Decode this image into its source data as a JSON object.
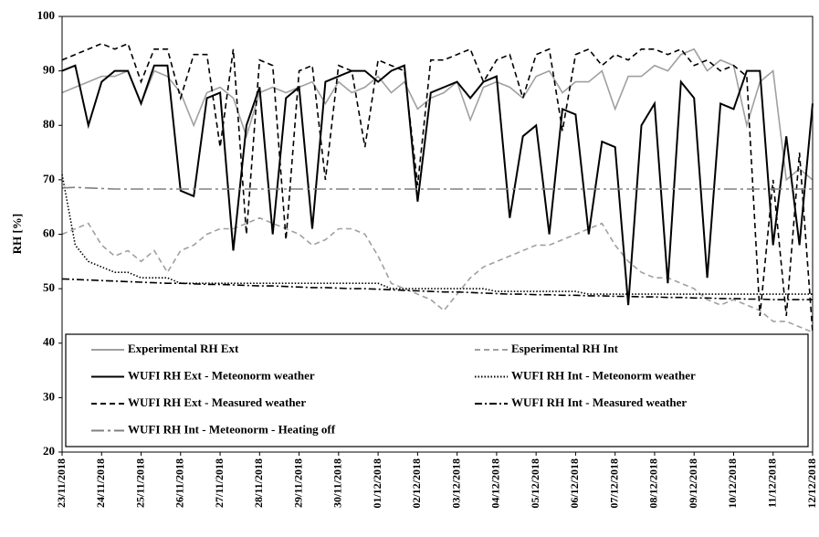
{
  "chart_data": {
    "type": "line",
    "y_label": "RH [%]",
    "ylim": [
      20,
      100
    ],
    "yticks": [
      20,
      30,
      40,
      50,
      60,
      70,
      80,
      90,
      100
    ],
    "grid": false,
    "categories": [
      "23/11/2018",
      null,
      null,
      "24/11/2018",
      null,
      null,
      "25/11/2018",
      null,
      null,
      "26/11/2018",
      null,
      null,
      "27/11/2018",
      null,
      null,
      "28/11/2018",
      null,
      null,
      "29/11/2018",
      null,
      null,
      "30/11/2018",
      null,
      null,
      "01/12/2018",
      null,
      null,
      "02/12/2018",
      null,
      null,
      "03/12/2018",
      null,
      null,
      "04/12/2018",
      null,
      null,
      "05/12/2018",
      null,
      null,
      "06/12/2018",
      null,
      null,
      "07/12/2018",
      null,
      null,
      "08/12/2018",
      null,
      null,
      "09/12/2018",
      null,
      null,
      "10/12/2018",
      null,
      null,
      "11/12/2018",
      null,
      null,
      "12/12/2018"
    ],
    "series": [
      {
        "name": "Experimental RH Ext",
        "color": "#a0a0a0",
        "dash": "solid",
        "values": [
          86,
          87,
          88,
          89,
          89,
          90,
          84,
          90,
          89,
          86,
          80,
          86,
          87,
          85,
          78,
          86,
          87,
          86,
          87,
          88,
          84,
          88,
          86,
          87,
          89,
          86,
          88,
          83,
          85,
          86,
          88,
          81,
          87,
          88,
          87,
          85,
          89,
          90,
          86,
          88,
          88,
          90,
          83,
          89,
          89,
          91,
          90,
          93,
          94,
          90,
          92,
          91,
          80,
          88,
          90,
          70,
          72,
          70
        ]
      },
      {
        "name": "Esperimental RH Int",
        "color": "#a0a0a0",
        "dash": "dashed",
        "values": [
          60,
          61,
          62,
          58,
          56,
          57,
          55,
          57,
          53,
          57,
          58,
          60,
          61,
          61,
          62,
          63,
          62,
          61,
          60,
          58,
          59,
          61,
          61,
          60,
          56,
          51,
          50,
          49,
          48,
          46,
          49,
          52,
          54,
          55,
          56,
          57,
          58,
          58,
          59,
          60,
          61,
          62,
          58,
          55,
          53,
          52,
          52,
          51,
          50,
          48,
          47,
          48,
          47,
          46,
          44,
          44,
          43,
          42
        ]
      },
      {
        "name": "WUFI RH Ext - Meteonorm weather",
        "color": "#000000",
        "dash": "solid",
        "values": [
          90,
          91,
          80,
          88,
          90,
          90,
          84,
          91,
          91,
          68,
          67,
          85,
          86,
          57,
          80,
          87,
          60,
          85,
          87,
          61,
          88,
          89,
          90,
          90,
          88,
          90,
          91,
          66,
          86,
          87,
          88,
          85,
          88,
          89,
          63,
          78,
          80,
          60,
          83,
          82,
          60,
          77,
          76,
          47,
          80,
          84,
          51,
          88,
          85,
          52,
          84,
          83,
          90,
          90,
          58,
          78,
          58,
          84
        ]
      },
      {
        "name": "WUFI RH Int - Meteonorm weather",
        "color": "#000000",
        "dash": "dotted",
        "values": [
          71,
          58,
          55,
          54,
          53,
          53,
          52,
          52,
          52,
          51,
          51,
          51,
          51,
          51,
          51,
          51,
          51,
          51,
          51,
          51,
          51,
          51,
          51,
          51,
          51,
          50,
          50,
          50,
          50,
          50,
          50,
          50,
          50,
          49.5,
          49.5,
          49.5,
          49.5,
          49.5,
          49.5,
          49.5,
          49,
          49,
          49,
          49,
          49,
          49,
          49,
          49,
          49,
          49,
          49,
          49,
          49,
          49,
          49,
          49,
          49,
          49
        ]
      },
      {
        "name": "WUFI RH Ext - Measured weather",
        "color": "#000000",
        "dash": "dashed",
        "values": [
          92,
          93,
          94,
          95,
          94,
          95,
          88,
          94,
          94,
          85,
          93,
          93,
          76,
          94,
          60,
          92,
          91,
          59,
          90,
          91,
          70,
          91,
          90,
          76,
          92,
          91,
          90,
          69,
          92,
          92,
          93,
          94,
          88,
          92,
          93,
          85,
          93,
          94,
          79,
          93,
          94,
          91,
          93,
          92,
          94,
          94,
          93,
          94,
          91,
          92,
          90,
          91,
          89,
          45,
          70,
          45,
          75,
          42
        ]
      },
      {
        "name": "WUFI RH Int - Measured weather",
        "color": "#000000",
        "dash": "dashdot",
        "values": [
          51.8,
          51.7,
          51.6,
          51.5,
          51.4,
          51.3,
          51.2,
          51.1,
          51,
          51,
          50.9,
          50.8,
          50.8,
          50.7,
          50.6,
          50.5,
          50.5,
          50.4,
          50.3,
          50.2,
          50.2,
          50.1,
          50,
          50,
          49.9,
          49.8,
          49.7,
          49.6,
          49.5,
          49.4,
          49.4,
          49.3,
          49.2,
          49.1,
          49,
          49,
          48.9,
          48.9,
          48.8,
          48.8,
          48.7,
          48.7,
          48.6,
          48.6,
          48.5,
          48.5,
          48.4,
          48.4,
          48.3,
          48.3,
          48.2,
          48.2,
          48.1,
          48.1,
          48,
          48,
          48,
          48
        ]
      },
      {
        "name": "WUFI RH Int - Meteonorm - Heating off",
        "color": "#808080",
        "dash": "longdashdot",
        "values": [
          68.5,
          68.6,
          68.5,
          68.4,
          68.3,
          68.3,
          68.3,
          68.3,
          68.3,
          68.3,
          68.3,
          68.3,
          68.3,
          68.3,
          68.3,
          68.3,
          68.3,
          68.3,
          68.3,
          68.3,
          68.3,
          68.3,
          68.3,
          68.3,
          68.3,
          68.3,
          68.3,
          68.3,
          68.3,
          68.3,
          68.3,
          68.3,
          68.3,
          68.3,
          68.3,
          68.3,
          68.3,
          68.3,
          68.3,
          68.3,
          68.3,
          68.3,
          68.3,
          68.3,
          68.3,
          68.3,
          68.3,
          68.3,
          68.3,
          68.3,
          68.3,
          68.3,
          68.3,
          68.3,
          68.3,
          68.3,
          68.3,
          68.3
        ]
      }
    ]
  }
}
